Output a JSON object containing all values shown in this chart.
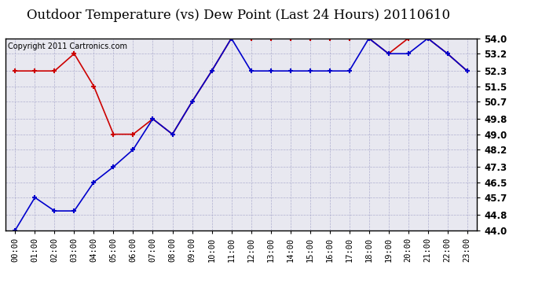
{
  "title": "Outdoor Temperature (vs) Dew Point (Last 24 Hours) 20110610",
  "copyright_text": "Copyright 2011 Cartronics.com",
  "x_labels": [
    "00:00",
    "01:00",
    "02:00",
    "03:00",
    "04:00",
    "05:00",
    "06:00",
    "07:00",
    "08:00",
    "09:00",
    "10:00",
    "11:00",
    "12:00",
    "13:00",
    "14:00",
    "15:00",
    "16:00",
    "17:00",
    "18:00",
    "19:00",
    "20:00",
    "21:00",
    "22:00",
    "23:00"
  ],
  "temp_data": [
    52.3,
    52.3,
    52.3,
    53.2,
    51.5,
    49.0,
    49.0,
    49.8,
    49.0,
    50.7,
    52.3,
    54.0,
    54.0,
    54.0,
    54.0,
    54.0,
    54.0,
    54.0,
    54.0,
    53.2,
    54.0,
    54.0,
    53.2,
    52.3
  ],
  "dew_data": [
    44.0,
    45.7,
    45.0,
    45.0,
    46.5,
    47.3,
    48.2,
    49.8,
    49.0,
    50.7,
    52.3,
    54.0,
    52.3,
    52.3,
    52.3,
    52.3,
    52.3,
    52.3,
    54.0,
    53.2,
    53.2,
    54.0,
    53.2,
    52.3
  ],
  "temp_color": "#cc0000",
  "dew_color": "#0000cc",
  "ylim": [
    44.0,
    54.0
  ],
  "yticks": [
    44.0,
    44.8,
    45.7,
    46.5,
    47.3,
    48.2,
    49.0,
    49.8,
    50.7,
    51.5,
    52.3,
    53.2,
    54.0
  ],
  "background_color": "#ffffff",
  "plot_bg_color": "#e8e8f0",
  "grid_color": "#aaaacc",
  "title_fontsize": 12,
  "copyright_fontsize": 7,
  "tick_fontsize": 7.5,
  "ytick_fontsize": 8.5
}
